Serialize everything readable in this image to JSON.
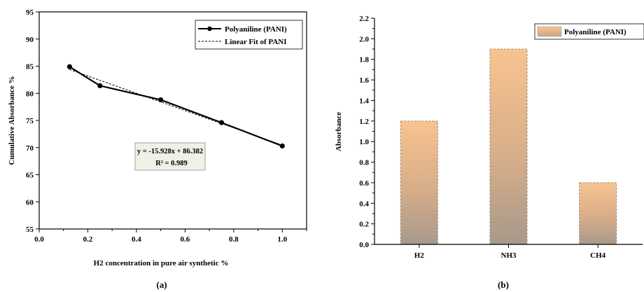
{
  "chart_data": [
    {
      "type": "line",
      "panel_caption": "(a)",
      "xlabel": "H2 concentration in pure air synthetic %",
      "ylabel": "Cumulative Absorbance %",
      "xlim": [
        0.0,
        1.1
      ],
      "ylim": [
        55,
        95
      ],
      "x_ticks": [
        "0.0",
        "0.2",
        "0.4",
        "0.6",
        "0.8",
        "1.0"
      ],
      "y_ticks": [
        "55",
        "60",
        "65",
        "70",
        "75",
        "80",
        "85",
        "90",
        "95"
      ],
      "grid": false,
      "legend_position": "top-right",
      "series": [
        {
          "name": "Polyaniline (PANI)",
          "style": "solid-with-markers",
          "x": [
            0.125,
            0.25,
            0.5,
            0.75,
            1.0
          ],
          "y": [
            84.9,
            81.4,
            78.8,
            74.6,
            70.3
          ]
        },
        {
          "name": "Linear Fit of PANI",
          "style": "dashed",
          "x": [
            0.125,
            1.0
          ],
          "y": [
            84.39,
            70.45
          ]
        }
      ],
      "annotation": {
        "line1": "y = -15.928x + 86.382",
        "line2": "R² = 0.989"
      }
    },
    {
      "type": "bar",
      "panel_caption": "(b)",
      "xlabel": "",
      "ylabel": "Absorbance",
      "ylim": [
        0.0,
        2.2
      ],
      "y_ticks": [
        "0.0",
        "0.2",
        "0.4",
        "0.6",
        "0.8",
        "1.0",
        "1.2",
        "1.4",
        "1.6",
        "1.8",
        "2.0",
        "2.2"
      ],
      "categories": [
        "H2",
        "NH3",
        "CH4"
      ],
      "grid": false,
      "legend_position": "top-right",
      "series": [
        {
          "name": "Polyaniline (PANI)",
          "values": [
            1.2,
            1.9,
            0.6
          ]
        }
      ],
      "colors": {
        "bar_top": "#f8c38f",
        "bar_bottom": "#a8998b",
        "bar_border": "#9a8f80"
      }
    }
  ]
}
